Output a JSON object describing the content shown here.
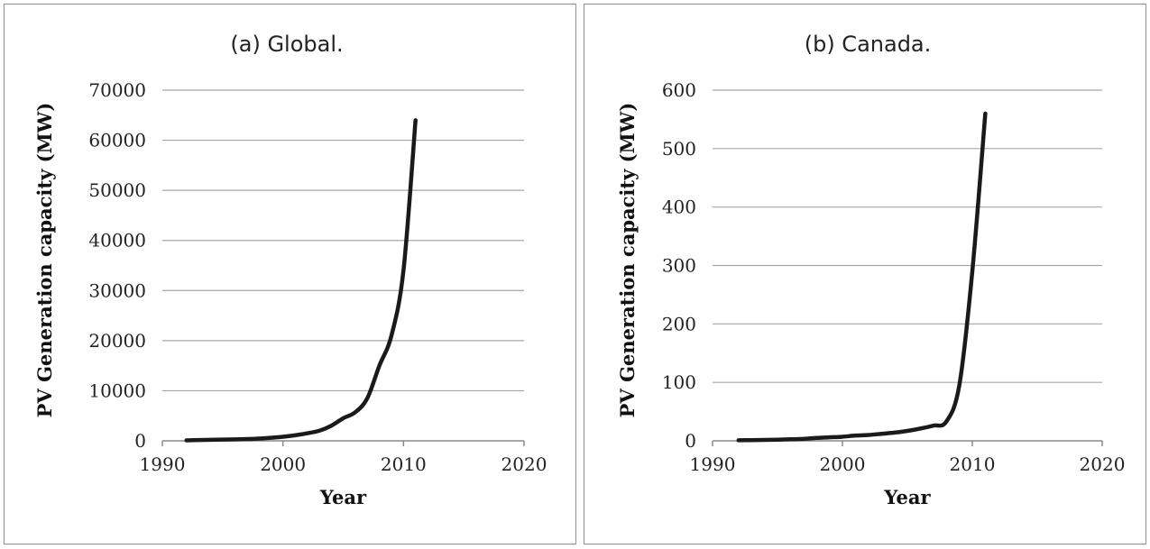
{
  "chart_data": [
    {
      "type": "line",
      "title": "(a) Global.",
      "xlabel": "Year",
      "ylabel": "PV Generation capacity (MW)",
      "xlim": [
        1990,
        2020
      ],
      "ylim": [
        0,
        70000
      ],
      "xticks": [
        1990,
        2000,
        2010,
        2020
      ],
      "yticks": [
        0,
        10000,
        20000,
        30000,
        40000,
        50000,
        60000,
        70000
      ],
      "grid": "horizontal",
      "line_color": "#1a1a1a",
      "series": [
        {
          "x": [
            1992,
            1993,
            1994,
            1995,
            1996,
            1997,
            1998,
            1999,
            2000,
            2001,
            2002,
            2003,
            2004,
            2005,
            2006,
            2007,
            2008,
            2009,
            2010,
            2011
          ],
          "y": [
            100,
            150,
            200,
            250,
            300,
            350,
            450,
            600,
            800,
            1100,
            1500,
            2000,
            3000,
            4500,
            5700,
            8500,
            15000,
            21000,
            34000,
            64000
          ]
        }
      ]
    },
    {
      "type": "line",
      "title": "(b) Canada.",
      "xlabel": "Year",
      "ylabel": "PV Generation capacity (MW)",
      "xlim": [
        1990,
        2020
      ],
      "ylim": [
        0,
        600
      ],
      "xticks": [
        1990,
        2000,
        2010,
        2020
      ],
      "yticks": [
        0,
        100,
        200,
        300,
        400,
        500,
        600
      ],
      "grid": "horizontal",
      "line_color": "#1a1a1a",
      "series": [
        {
          "x": [
            1992,
            1993,
            1994,
            1995,
            1996,
            1997,
            1998,
            1999,
            2000,
            2001,
            2002,
            2003,
            2004,
            2005,
            2006,
            2007,
            2008,
            2009,
            2010,
            2011
          ],
          "y": [
            1,
            1.2,
            1.5,
            2,
            2.6,
            3.3,
            5,
            6,
            7,
            9,
            10,
            12,
            14,
            17,
            21,
            26,
            33,
            95,
            290,
            560
          ]
        }
      ]
    }
  ]
}
